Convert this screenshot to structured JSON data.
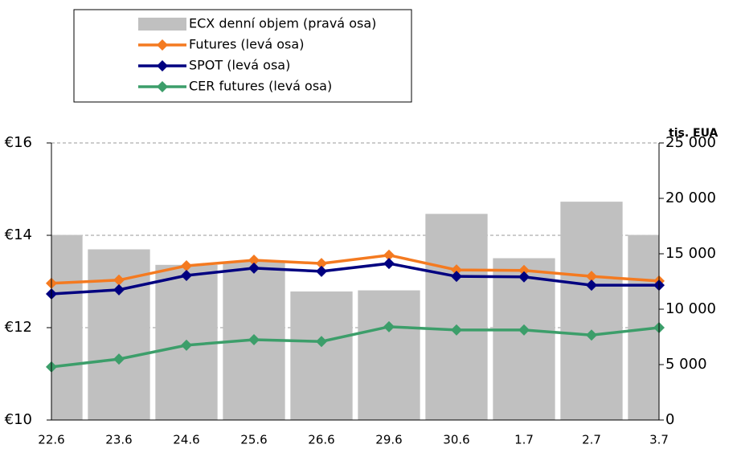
{
  "chart_data": {
    "type": "bar-line",
    "y2_axis_label": "tis. EUA",
    "categories": [
      "22.6",
      "23.6",
      "24.6",
      "25.6",
      "26.6",
      "29.6",
      "30.6",
      "1.7",
      "2.7",
      "3.7"
    ],
    "series": [
      {
        "name": "ECX denní objem (pravá osa)",
        "type": "bar",
        "axis": "y2",
        "color": "#c0c0c0",
        "values": [
          16700,
          15400,
          14000,
          14300,
          11600,
          11700,
          18600,
          14600,
          19700,
          16700
        ]
      },
      {
        "name": "Futures (levá osa)",
        "type": "line",
        "color": "#f47a20",
        "values": [
          12.96,
          13.03,
          13.34,
          13.46,
          13.39,
          13.57,
          13.25,
          13.24,
          13.11,
          13.01
        ]
      },
      {
        "name": "SPOT (levá osa)",
        "type": "line",
        "color": "#000080",
        "values": [
          12.73,
          12.82,
          13.13,
          13.29,
          13.22,
          13.39,
          13.11,
          13.1,
          12.92,
          12.92
        ]
      },
      {
        "name": "CER futures (levá osa)",
        "type": "line",
        "color": "#3c9e6a",
        "values": [
          11.15,
          11.32,
          11.62,
          11.74,
          11.7,
          12.02,
          11.95,
          11.95,
          11.84,
          12.0
        ]
      }
    ],
    "ylim": [
      10,
      16
    ],
    "yticks": [
      {
        "value": 10,
        "label": "€10"
      },
      {
        "value": 12,
        "label": "€12"
      },
      {
        "value": 14,
        "label": "€14"
      },
      {
        "value": 16,
        "label": "€16"
      }
    ],
    "y2lim": [
      0,
      25000
    ],
    "y2ticks": [
      0,
      {
        "value": 5000,
        "label": "5 000"
      },
      {
        "value": 10000,
        "label": "10 000"
      },
      {
        "value": 15000,
        "label": "15 000"
      },
      {
        "value": 20000,
        "label": "20 000"
      },
      {
        "value": 25000,
        "label": "25 000"
      }
    ],
    "grid": true,
    "legend": "top-left"
  }
}
